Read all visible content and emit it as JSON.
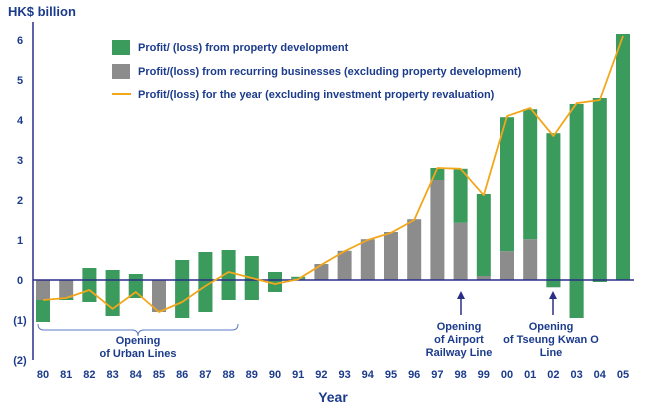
{
  "chart_data": {
    "type": "bar",
    "ylabel": "HK$ billion",
    "xlabel": "Year",
    "ylim": [
      -2,
      6.3
    ],
    "yticks": [
      {
        "value": 6,
        "label": "6"
      },
      {
        "value": 5,
        "label": "5"
      },
      {
        "value": 4,
        "label": "4"
      },
      {
        "value": 3,
        "label": "3"
      },
      {
        "value": 2,
        "label": "2"
      },
      {
        "value": 1,
        "label": "1"
      },
      {
        "value": 0,
        "label": "0"
      },
      {
        "value": -1,
        "label": "(1)"
      },
      {
        "value": -2,
        "label": "(2)"
      }
    ],
    "categories": [
      "80",
      "81",
      "82",
      "83",
      "84",
      "85",
      "86",
      "87",
      "88",
      "89",
      "90",
      "91",
      "92",
      "93",
      "94",
      "95",
      "96",
      "97",
      "98",
      "99",
      "00",
      "01",
      "02",
      "03",
      "04",
      "05"
    ],
    "stacking": "bars stacked from zero: recurring segment first, property development segment continues from its end",
    "series": [
      {
        "name": "Profit/ (loss) from property development",
        "color": "#3a9b5c",
        "values": [
          0.55,
          0.05,
          0.85,
          1.15,
          0.6,
          0,
          1.45,
          1.5,
          1.25,
          1.1,
          0.5,
          0.05,
          0,
          0,
          0,
          0,
          0,
          0.3,
          1.35,
          2.05,
          3.35,
          3.25,
          3.85,
          5.35,
          4.6,
          6.15
        ]
      },
      {
        "name": "Profit/(loss) from recurring businesses (excluding property development)",
        "color": "#8c8c8c",
        "values": [
          -1.05,
          -0.5,
          -0.55,
          -0.9,
          -0.45,
          -0.8,
          -0.95,
          -0.8,
          -0.5,
          -0.5,
          -0.3,
          0.03,
          0.4,
          0.73,
          1.02,
          1.2,
          1.52,
          2.5,
          1.43,
          0.1,
          0.72,
          1.02,
          -0.18,
          -0.95,
          -0.05,
          0
        ]
      }
    ],
    "line": {
      "name": "Profit/(loss) for the year (excluding investment property revaluation)",
      "color": "#f2a71b",
      "values": [
        -0.5,
        -0.45,
        -0.25,
        -0.72,
        -0.3,
        -0.8,
        -0.55,
        -0.15,
        0.2,
        0.05,
        -0.1,
        0.02,
        0.38,
        0.72,
        1.0,
        1.18,
        1.5,
        2.8,
        2.78,
        2.12,
        4.1,
        4.3,
        3.6,
        4.42,
        4.5,
        6.1
      ]
    },
    "legend_position": "top-left"
  },
  "annotations": [
    {
      "id": "urban",
      "lines": [
        "Opening",
        "of  Urban Lines"
      ]
    },
    {
      "id": "airport",
      "lines": [
        "Opening",
        "of  Airport",
        "Railway Line"
      ]
    },
    {
      "id": "tko",
      "lines": [
        "Opening",
        "of Tseung Kwan O",
        "Line"
      ]
    }
  ],
  "colors": {
    "axis": "#2a2f86",
    "text": "#1b3b8b",
    "arrow": "#2a2f86",
    "brace": "#5b78c6"
  }
}
